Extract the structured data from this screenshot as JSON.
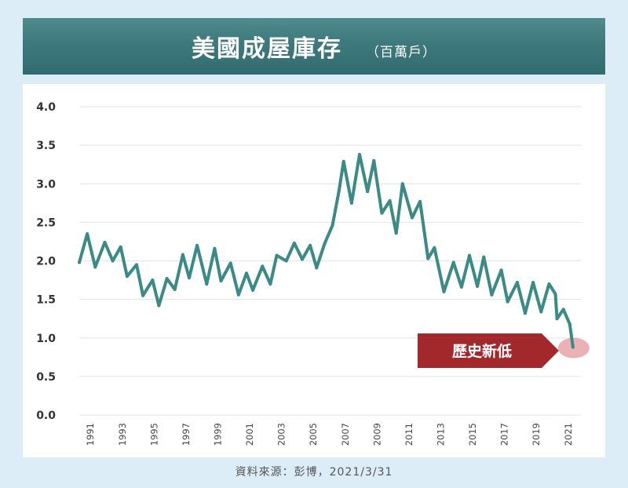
{
  "banner": {
    "title": "美國成屋庫存",
    "unit": "（百萬戶）"
  },
  "annotation": {
    "label": "歷史新低"
  },
  "source": "資料來源：彭博，2021/3/31",
  "colors": {
    "line": "#3a8a86",
    "callout": "#a3282c",
    "highlight": "#e8a5a8",
    "banner": "#3f7b7e",
    "page": "#dcedf7"
  },
  "chart_data": {
    "type": "line",
    "title": "美國成屋庫存",
    "ylabel": "",
    "xlabel": "",
    "ylim": [
      0,
      4.0
    ],
    "xlim": [
      1990.3,
      2021.8
    ],
    "yticks": [
      "0.0",
      "0.5",
      "1.0",
      "1.5",
      "2.0",
      "2.5",
      "3.0",
      "3.5",
      "4.0"
    ],
    "xticks": [
      "1991",
      "1993",
      "1995",
      "1997",
      "1999",
      "2001",
      "2003",
      "2005",
      "2007",
      "2009",
      "2011",
      "2013",
      "2015",
      "2017",
      "2019",
      "2021"
    ],
    "grid": true,
    "series": [
      {
        "name": "",
        "points": [
          [
            1990.3,
            1.98
          ],
          [
            1990.8,
            2.35
          ],
          [
            1991.3,
            1.92
          ],
          [
            1991.9,
            2.24
          ],
          [
            1992.4,
            2.0
          ],
          [
            1992.9,
            2.18
          ],
          [
            1993.3,
            1.8
          ],
          [
            1993.9,
            1.95
          ],
          [
            1994.3,
            1.55
          ],
          [
            1994.9,
            1.75
          ],
          [
            1995.3,
            1.42
          ],
          [
            1995.8,
            1.77
          ],
          [
            1996.3,
            1.63
          ],
          [
            1996.8,
            2.08
          ],
          [
            1997.2,
            1.78
          ],
          [
            1997.7,
            2.2
          ],
          [
            1998.3,
            1.7
          ],
          [
            1998.8,
            2.16
          ],
          [
            1999.2,
            1.74
          ],
          [
            1999.8,
            1.97
          ],
          [
            2000.3,
            1.56
          ],
          [
            2000.8,
            1.84
          ],
          [
            2001.2,
            1.62
          ],
          [
            2001.8,
            1.93
          ],
          [
            2002.3,
            1.7
          ],
          [
            2002.7,
            2.07
          ],
          [
            2003.3,
            2.0
          ],
          [
            2003.8,
            2.23
          ],
          [
            2004.3,
            2.02
          ],
          [
            2004.8,
            2.2
          ],
          [
            2005.2,
            1.91
          ],
          [
            2005.7,
            2.22
          ],
          [
            2006.2,
            2.46
          ],
          [
            2006.6,
            2.9
          ],
          [
            2006.9,
            3.29
          ],
          [
            2007.4,
            2.75
          ],
          [
            2007.9,
            3.38
          ],
          [
            2008.4,
            2.9
          ],
          [
            2008.8,
            3.3
          ],
          [
            2009.3,
            2.62
          ],
          [
            2009.8,
            2.78
          ],
          [
            2010.2,
            2.36
          ],
          [
            2010.6,
            3.0
          ],
          [
            2011.2,
            2.56
          ],
          [
            2011.7,
            2.77
          ],
          [
            2012.2,
            2.03
          ],
          [
            2012.6,
            2.17
          ],
          [
            2013.2,
            1.6
          ],
          [
            2013.8,
            1.98
          ],
          [
            2014.3,
            1.66
          ],
          [
            2014.8,
            2.07
          ],
          [
            2015.3,
            1.67
          ],
          [
            2015.7,
            2.05
          ],
          [
            2016.2,
            1.56
          ],
          [
            2016.8,
            1.88
          ],
          [
            2017.2,
            1.47
          ],
          [
            2017.8,
            1.72
          ],
          [
            2018.3,
            1.32
          ],
          [
            2018.8,
            1.72
          ],
          [
            2019.3,
            1.34
          ],
          [
            2019.8,
            1.7
          ],
          [
            2020.2,
            1.57
          ],
          [
            2020.3,
            1.25
          ],
          [
            2020.7,
            1.37
          ],
          [
            2021.1,
            1.18
          ],
          [
            2021.3,
            0.88
          ]
        ]
      }
    ]
  }
}
